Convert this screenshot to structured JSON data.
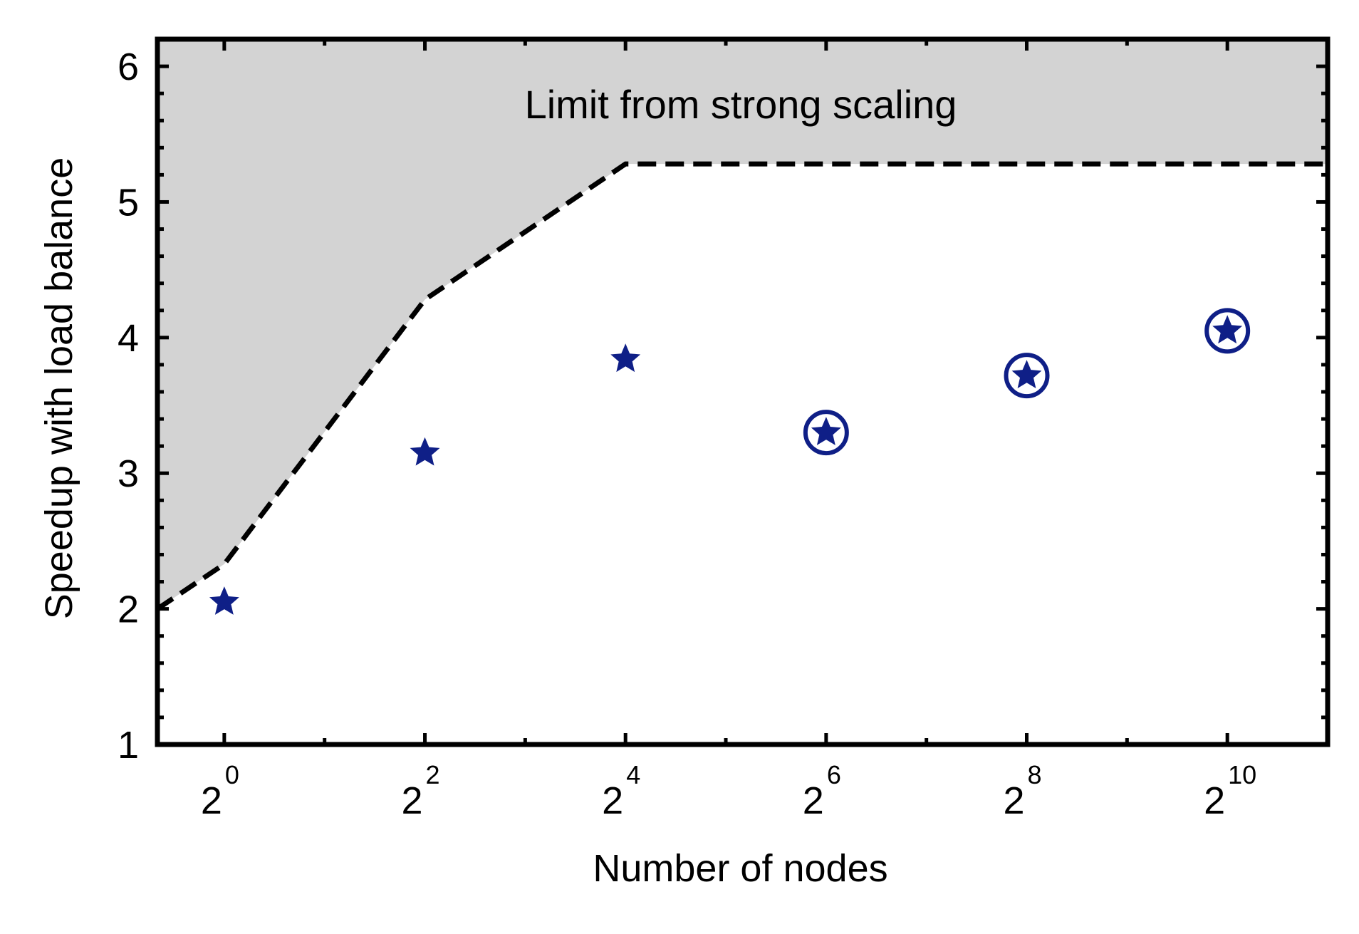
{
  "chart_data": {
    "type": "scatter",
    "title": "",
    "xlabel": "Number of nodes",
    "ylabel": "Speedup with load balance",
    "x_scale": "log2",
    "x_tick_base": "2",
    "x_ticks": [
      {
        "value": 1,
        "exponent": "0"
      },
      {
        "value": 4,
        "exponent": "2"
      },
      {
        "value": 16,
        "exponent": "4"
      },
      {
        "value": 64,
        "exponent": "6"
      },
      {
        "value": 256,
        "exponent": "8"
      },
      {
        "value": 1024,
        "exponent": "10"
      }
    ],
    "y_ticks": [
      "1",
      "2",
      "3",
      "4",
      "5",
      "6"
    ],
    "xlim": [
      0.63,
      2048
    ],
    "ylim": [
      1,
      6.2
    ],
    "grid": false,
    "series": [
      {
        "marker": "star",
        "color": "#0f1f87",
        "points": [
          {
            "x": 1,
            "y": 2.05
          },
          {
            "x": 4,
            "y": 3.15
          },
          {
            "x": 16,
            "y": 3.84
          }
        ]
      },
      {
        "marker": "circled-star",
        "color": "#0f1f87",
        "points": [
          {
            "x": 64,
            "y": 3.3
          },
          {
            "x": 256,
            "y": 3.72
          },
          {
            "x": 1024,
            "y": 4.05
          }
        ]
      }
    ],
    "limit_line": {
      "style": "dashed",
      "color": "#000000",
      "fill_color": "#d3d3d3",
      "points": [
        {
          "x": 0.63,
          "y": 2.0
        },
        {
          "x": 1,
          "y": 2.33
        },
        {
          "x": 4,
          "y": 4.28
        },
        {
          "x": 16,
          "y": 5.28
        },
        {
          "x": 2048,
          "y": 5.28
        }
      ]
    },
    "annotation": "Limit from strong scaling"
  }
}
